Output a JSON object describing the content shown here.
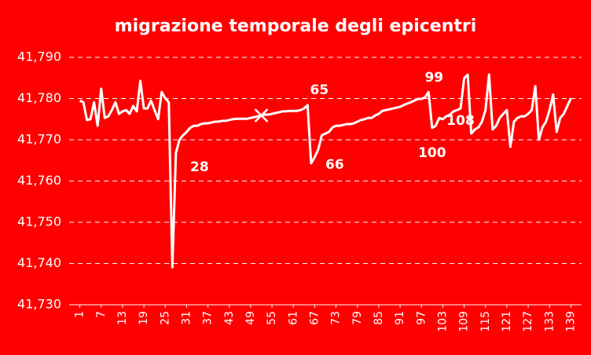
{
  "chart_data": {
    "type": "line",
    "title": "migrazione temporale degli epicentri",
    "background": "#ff0000",
    "color": "#ffffff",
    "grid": true,
    "x": [
      1,
      2,
      3,
      4,
      5,
      6,
      7,
      8,
      9,
      10,
      11,
      12,
      13,
      14,
      15,
      16,
      17,
      18,
      19,
      20,
      21,
      22,
      23,
      24,
      25,
      26,
      27,
      28,
      29,
      30,
      31,
      32,
      33,
      34,
      35,
      36,
      37,
      38,
      39,
      40,
      41,
      42,
      43,
      44,
      45,
      46,
      47,
      48,
      49,
      50,
      51,
      52,
      53,
      54,
      55,
      56,
      57,
      58,
      59,
      60,
      61,
      62,
      63,
      64,
      65,
      66,
      67,
      68,
      69,
      70,
      71,
      72,
      73,
      74,
      75,
      76,
      77,
      78,
      79,
      80,
      81,
      82,
      83,
      84,
      85,
      86,
      87,
      88,
      89,
      90,
      91,
      92,
      93,
      94,
      95,
      96,
      97,
      98,
      99,
      100,
      101,
      102,
      103,
      104,
      105,
      106,
      107,
      108,
      109,
      110,
      111,
      112,
      113,
      114,
      115,
      116,
      117,
      118,
      119,
      120,
      121,
      122,
      123,
      124,
      125,
      126,
      127,
      128,
      129,
      130,
      131,
      132,
      133,
      134,
      135,
      136,
      137,
      138,
      139
    ],
    "values": [
      41.7795,
      41.7791,
      41.7748,
      41.775,
      41.7791,
      41.7734,
      41.7824,
      41.7753,
      41.7757,
      41.7772,
      41.7791,
      41.7763,
      41.7769,
      41.7772,
      41.7763,
      41.7782,
      41.7769,
      41.7843,
      41.7776,
      41.7776,
      41.7795,
      41.7772,
      41.775,
      41.7816,
      41.7801,
      41.7791,
      41.7391,
      41.7668,
      41.77,
      41.7711,
      41.7719,
      41.7729,
      41.7734,
      41.7734,
      41.7738,
      41.774,
      41.774,
      41.7742,
      41.7744,
      41.7744,
      41.7746,
      41.7746,
      41.7748,
      41.775,
      41.7751,
      41.7751,
      41.7751,
      41.7751,
      41.7753,
      41.7755,
      41.7757,
      41.7759,
      41.7761,
      41.7761,
      41.7763,
      41.7765,
      41.7767,
      41.7769,
      41.7769,
      41.777,
      41.777,
      41.777,
      41.7772,
      41.7776,
      41.7784,
      41.7643,
      41.7658,
      41.7677,
      41.7711,
      41.7715,
      41.7719,
      41.773,
      41.7734,
      41.7734,
      41.7736,
      41.7738,
      41.7738,
      41.774,
      41.7744,
      41.7748,
      41.775,
      41.7753,
      41.7753,
      41.7759,
      41.7763,
      41.777,
      41.7772,
      41.7774,
      41.7776,
      41.7778,
      41.778,
      41.7784,
      41.7788,
      41.7791,
      41.7795,
      41.7799,
      41.7799,
      41.7803,
      41.7816,
      41.7729,
      41.7734,
      41.7753,
      41.775,
      41.7757,
      41.7761,
      41.7769,
      41.7772,
      41.7776,
      41.7849,
      41.7858,
      41.7715,
      41.7725,
      41.773,
      41.7744,
      41.7772,
      41.7858,
      41.7725,
      41.7734,
      41.7753,
      41.7763,
      41.7772,
      41.7683,
      41.7744,
      41.7753,
      41.7757,
      41.7757,
      41.7763,
      41.7772,
      41.783,
      41.77,
      41.773,
      41.7744,
      41.7772,
      41.781,
      41.7719,
      41.7753,
      41.7763,
      41.7782,
      41.7801
    ],
    "xlim": [
      -2,
      142
    ],
    "xticks": [
      1,
      7,
      13,
      19,
      25,
      31,
      37,
      43,
      49,
      55,
      61,
      67,
      73,
      79,
      85,
      91,
      97,
      103,
      109,
      115,
      121,
      127,
      133,
      139
    ],
    "ylim": [
      41.73,
      41.79
    ],
    "yticks": [
      {
        "value": 41.73,
        "label": "41,730"
      },
      {
        "value": 41.74,
        "label": "41,740"
      },
      {
        "value": 41.75,
        "label": "41,750"
      },
      {
        "value": 41.76,
        "label": "41,760"
      },
      {
        "value": 41.77,
        "label": "41,770"
      },
      {
        "value": 41.78,
        "label": "41,780"
      },
      {
        "value": 41.79,
        "label": "41,790"
      }
    ],
    "annotations": [
      {
        "text": "28",
        "x": 28
      },
      {
        "text": "65",
        "x": 65
      },
      {
        "text": "66",
        "x": 66
      },
      {
        "text": "99",
        "x": 99
      },
      {
        "text": "100",
        "x": 100
      },
      {
        "text": "108",
        "x": 108
      }
    ],
    "cross_marker": {
      "x": 52,
      "y": 41.7759
    }
  }
}
